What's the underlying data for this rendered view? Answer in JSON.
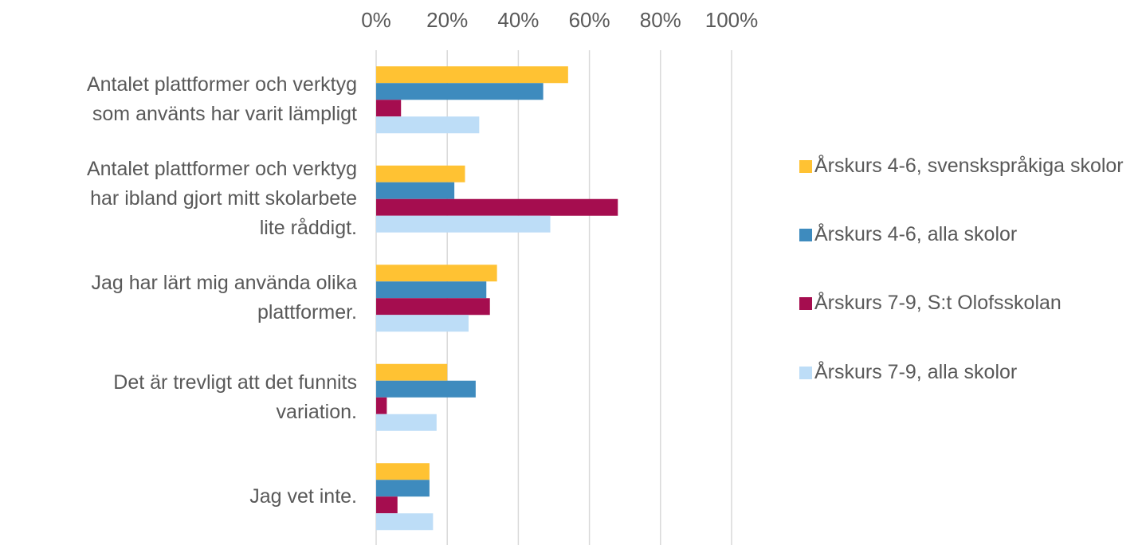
{
  "chart_data": {
    "type": "bar",
    "orientation": "horizontal",
    "categories": [
      "Antalet plattformer och verktyg\nsom använts har varit lämpligt",
      "Antalet plattformer och verktyg\nhar ibland gjort mitt skolarbete\nlite råddigt.",
      "Jag har lärt mig använda olika\nplattformer.",
      "Det är trevligt att det funnits\nvariation.",
      "Jag vet inte."
    ],
    "series": [
      {
        "name": "Årskurs 4-6, svenskspråkiga skolor",
        "color": "#FFC233",
        "values": [
          54,
          25,
          34,
          20,
          15
        ]
      },
      {
        "name": "Årskurs 4-6, alla skolor",
        "color": "#3E8BBE",
        "values": [
          47,
          22,
          31,
          28,
          15
        ]
      },
      {
        "name": "Årskurs 7-9, S:t Olofsskolan",
        "color": "#A50D4F",
        "values": [
          7,
          68,
          32,
          3,
          6
        ]
      },
      {
        "name": "Årskurs 7-9, alla skolor",
        "color": "#BDDDF7",
        "values": [
          29,
          49,
          26,
          17,
          16
        ]
      }
    ],
    "xlim": [
      0,
      100
    ],
    "xticks": [
      {
        "value": 0,
        "label": "0%"
      },
      {
        "value": 20,
        "label": "20%"
      },
      {
        "value": 40,
        "label": "40%"
      },
      {
        "value": 60,
        "label": "60%"
      },
      {
        "value": 80,
        "label": "80%"
      },
      {
        "value": 100,
        "label": "100%"
      }
    ],
    "grid": true,
    "legend": "right"
  }
}
